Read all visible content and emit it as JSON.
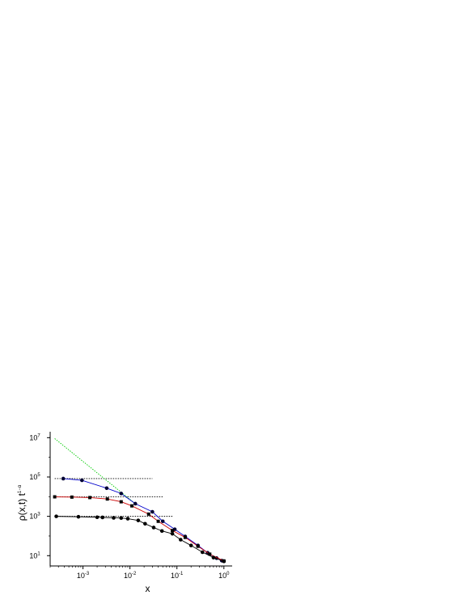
{
  "chart_data": {
    "type": "scatter",
    "xlabel": "x",
    "ylabel": "ρ(x,t) t",
    "ylabel_sup": "1−α",
    "x_scale": "log",
    "y_scale": "log",
    "xlim": [
      0.0002,
      1.5
    ],
    "ylim": [
      3,
      20000000
    ],
    "x_ticks": [
      {
        "value": 0.001,
        "base": "10",
        "exp": "-3"
      },
      {
        "value": 0.01,
        "base": "10",
        "exp": "-2"
      },
      {
        "value": 0.1,
        "base": "10",
        "exp": "-1"
      },
      {
        "value": 1,
        "base": "10",
        "exp": "0"
      }
    ],
    "y_ticks": [
      {
        "value": 10,
        "base": "10",
        "exp": "1"
      },
      {
        "value": 1000,
        "base": "10",
        "exp": "3"
      },
      {
        "value": 100000,
        "base": "10",
        "exp": "5"
      },
      {
        "value": 10000000,
        "base": "10",
        "exp": "7"
      }
    ],
    "grid": false,
    "series": [
      {
        "color": "#0000cc",
        "line": "solid",
        "marker": "circle",
        "points": [
          [
            0.00038,
            83000
          ],
          [
            0.00095,
            68000
          ],
          [
            0.0032,
            27000
          ],
          [
            0.0065,
            14500
          ],
          [
            0.013,
            4400
          ],
          [
            0.03,
            1700
          ],
          [
            0.05,
            560
          ],
          [
            0.09,
            220
          ],
          [
            0.15,
            95
          ],
          [
            0.28,
            33
          ],
          [
            0.45,
            14
          ],
          [
            0.7,
            7.5
          ],
          [
            0.9,
            5.6
          ],
          [
            1.0,
            5.2
          ]
        ]
      },
      {
        "color": "#cc0000",
        "line": "solid",
        "marker": "square",
        "points": [
          [
            0.00025,
            9800
          ],
          [
            0.00058,
            9500
          ],
          [
            0.0014,
            9000
          ],
          [
            0.0033,
            7600
          ],
          [
            0.0065,
            5500
          ],
          [
            0.011,
            3400
          ],
          [
            0.025,
            1300
          ],
          [
            0.04,
            560
          ],
          [
            0.08,
            190
          ],
          [
            0.15,
            85
          ],
          [
            0.28,
            30
          ],
          [
            0.5,
            12
          ],
          [
            1.0,
            5.4
          ]
        ]
      },
      {
        "color": "#000000",
        "line": "solid",
        "marker": "circle",
        "points": [
          [
            0.00027,
            1000
          ],
          [
            0.0008,
            950
          ],
          [
            0.002,
            900
          ],
          [
            0.0026,
            880
          ],
          [
            0.0045,
            840
          ],
          [
            0.0065,
            820
          ],
          [
            0.009,
            760
          ],
          [
            0.015,
            620
          ],
          [
            0.021,
            420
          ],
          [
            0.032,
            270
          ],
          [
            0.048,
            180
          ],
          [
            0.08,
            130
          ],
          [
            0.12,
            65
          ],
          [
            0.2,
            33
          ],
          [
            0.35,
            15
          ],
          [
            0.6,
            8
          ],
          [
            1.0,
            5.2
          ]
        ]
      }
    ],
    "reference_lines": [
      {
        "color": "#000000",
        "style": "dotted",
        "x": [
          0.00025,
          0.03
        ],
        "y": [
          83000,
          83000
        ]
      },
      {
        "color": "#000000",
        "style": "dotted",
        "x": [
          0.00025,
          0.05
        ],
        "y": [
          9800,
          9800
        ]
      },
      {
        "color": "#000000",
        "style": "dotted",
        "x": [
          0.00025,
          0.08
        ],
        "y": [
          1000,
          1000
        ]
      },
      {
        "color": "#00cc00",
        "style": "dotted",
        "x": [
          0.00025,
          0.013
        ],
        "y": [
          9000000,
          4400
        ]
      }
    ]
  }
}
